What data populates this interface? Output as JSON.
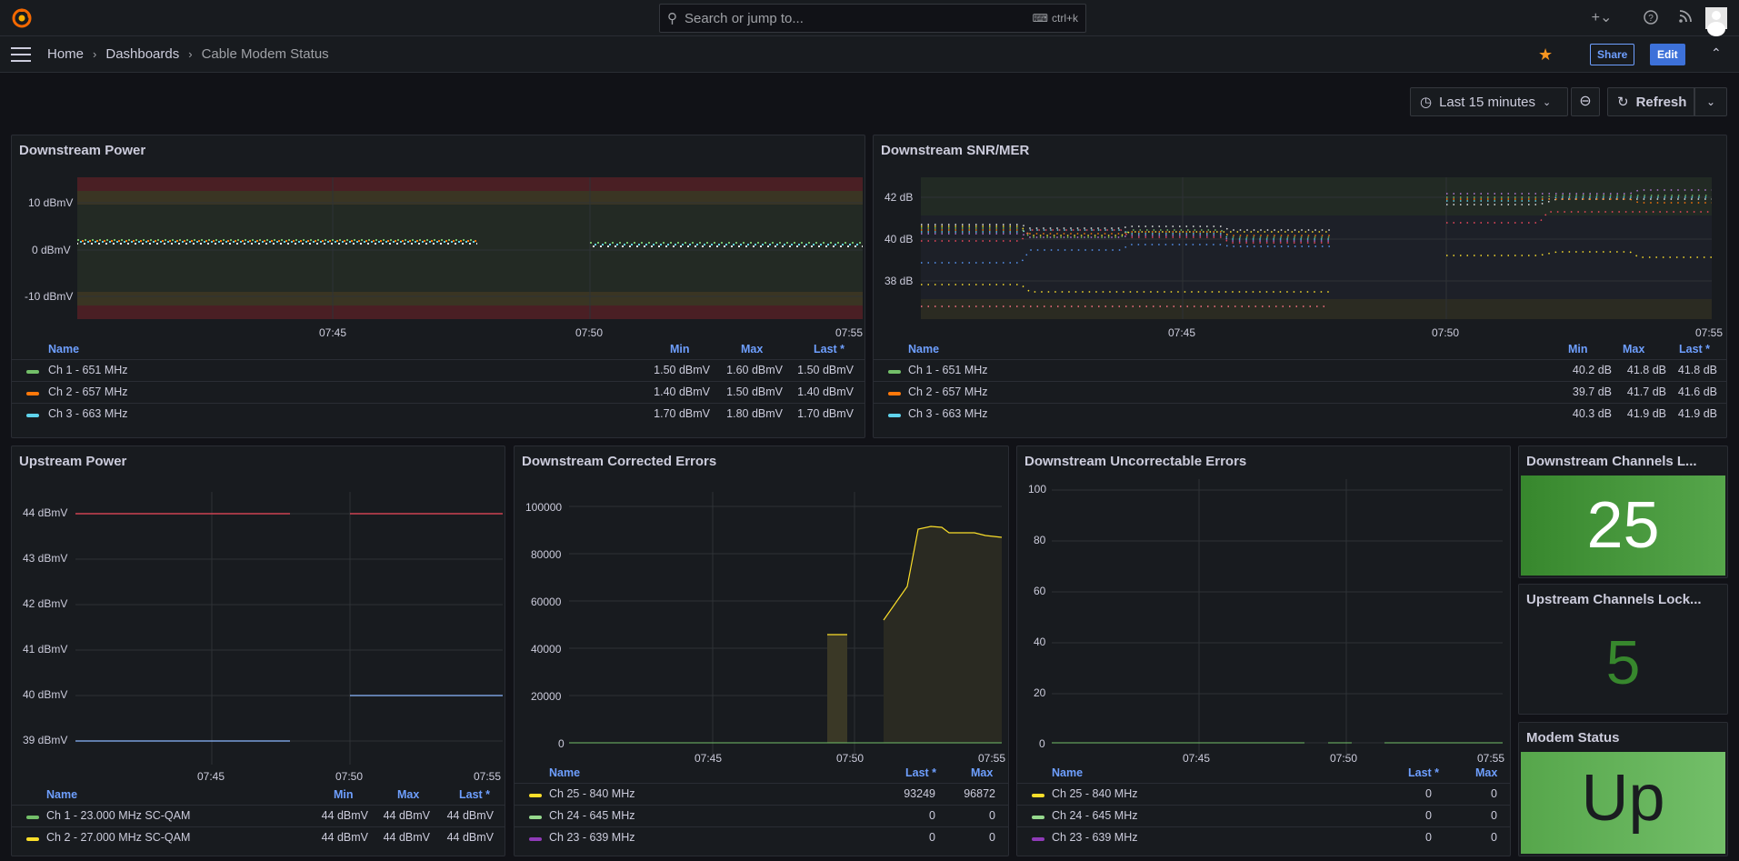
{
  "topbar": {
    "search_placeholder": "Search or jump to...",
    "search_shortcut": "ctrl+k"
  },
  "breadcrumb": {
    "home": "Home",
    "dashboards": "Dashboards",
    "current": "Cable Modem Status"
  },
  "toolbar": {
    "share": "Share",
    "edit": "Edit",
    "time_range": "Last 15 minutes",
    "refresh": "Refresh"
  },
  "colors": {
    "green": "#73bf69",
    "orange": "#ff780a",
    "cyan": "#5fd3ec",
    "yellow": "#fade2a",
    "purple": "#8f3bb8",
    "red": "#f2495c",
    "blue": "#8ab8ff",
    "accent": "#6e9fff"
  },
  "panels": {
    "ds_power": {
      "title": "Downstream Power",
      "y_ticks": [
        "10 dBmV",
        "0 dBmV",
        "-10 dBmV"
      ],
      "x_ticks": [
        "07:45",
        "07:50",
        "07:55"
      ],
      "legend": {
        "name": "Name",
        "min": "Min",
        "max": "Max",
        "last": "Last *"
      },
      "rows": [
        {
          "name": "Ch 1 - 651 MHz",
          "min": "1.50 dBmV",
          "max": "1.60 dBmV",
          "last": "1.50 dBmV",
          "color": "#73bf69"
        },
        {
          "name": "Ch 2 - 657 MHz",
          "min": "1.40 dBmV",
          "max": "1.50 dBmV",
          "last": "1.40 dBmV",
          "color": "#ff780a"
        },
        {
          "name": "Ch 3 - 663 MHz",
          "min": "1.70 dBmV",
          "max": "1.80 dBmV",
          "last": "1.70 dBmV",
          "color": "#5fd3ec"
        }
      ]
    },
    "ds_snr": {
      "title": "Downstream SNR/MER",
      "y_ticks": [
        "42 dB",
        "40 dB",
        "38 dB"
      ],
      "x_ticks": [
        "07:45",
        "07:50",
        "07:55"
      ],
      "legend": {
        "name": "Name",
        "min": "Min",
        "max": "Max",
        "last": "Last *"
      },
      "rows": [
        {
          "name": "Ch 1 - 651 MHz",
          "min": "40.2 dB",
          "max": "41.8 dB",
          "last": "41.8 dB",
          "color": "#73bf69"
        },
        {
          "name": "Ch 2 - 657 MHz",
          "min": "39.7 dB",
          "max": "41.7 dB",
          "last": "41.6 dB",
          "color": "#ff780a"
        },
        {
          "name": "Ch 3 - 663 MHz",
          "min": "40.3 dB",
          "max": "41.9 dB",
          "last": "41.9 dB",
          "color": "#5fd3ec"
        }
      ]
    },
    "us_power": {
      "title": "Upstream Power",
      "y_ticks": [
        "44 dBmV",
        "43 dBmV",
        "42 dBmV",
        "41 dBmV",
        "40 dBmV",
        "39 dBmV"
      ],
      "x_ticks": [
        "07:45",
        "07:50",
        "07:55"
      ],
      "legend": {
        "name": "Name",
        "min": "Min",
        "max": "Max",
        "last": "Last *"
      },
      "rows": [
        {
          "name": "Ch 1 - 23.000 MHz SC-QAM",
          "min": "44 dBmV",
          "max": "44 dBmV",
          "last": "44 dBmV",
          "color": "#73bf69"
        },
        {
          "name": "Ch 2 - 27.000 MHz SC-QAM",
          "min": "44 dBmV",
          "max": "44 dBmV",
          "last": "44 dBmV",
          "color": "#fade2a"
        }
      ]
    },
    "ds_corr": {
      "title": "Downstream Corrected Errors",
      "y_ticks": [
        "100000",
        "80000",
        "60000",
        "40000",
        "20000",
        "0"
      ],
      "x_ticks": [
        "07:45",
        "07:50",
        "07:55"
      ],
      "legend": {
        "name": "Name",
        "last": "Last *",
        "max": "Max"
      },
      "rows": [
        {
          "name": "Ch 25 - 840 MHz",
          "last": "93249",
          "max": "96872",
          "color": "#fade2a"
        },
        {
          "name": "Ch 24 - 645 MHz",
          "last": "0",
          "max": "0",
          "color": "#96d98d"
        },
        {
          "name": "Ch 23 - 639 MHz",
          "last": "0",
          "max": "0",
          "color": "#8f3bb8"
        }
      ]
    },
    "ds_uncorr": {
      "title": "Downstream Uncorrectable Errors",
      "y_ticks": [
        "100",
        "80",
        "60",
        "40",
        "20",
        "0"
      ],
      "x_ticks": [
        "07:45",
        "07:50",
        "07:55"
      ],
      "legend": {
        "name": "Name",
        "last": "Last *",
        "max": "Max"
      },
      "rows": [
        {
          "name": "Ch 25 - 840 MHz",
          "last": "0",
          "max": "0",
          "color": "#fade2a"
        },
        {
          "name": "Ch 24 - 645 MHz",
          "last": "0",
          "max": "0",
          "color": "#96d98d"
        },
        {
          "name": "Ch 23 - 639 MHz",
          "last": "0",
          "max": "0",
          "color": "#8f3bb8"
        }
      ]
    },
    "ds_locked": {
      "title": "Downstream Channels L...",
      "value": "25"
    },
    "us_locked": {
      "title": "Upstream Channels Lock...",
      "value": "5"
    },
    "modem": {
      "title": "Modem Status",
      "value": "Up"
    }
  }
}
